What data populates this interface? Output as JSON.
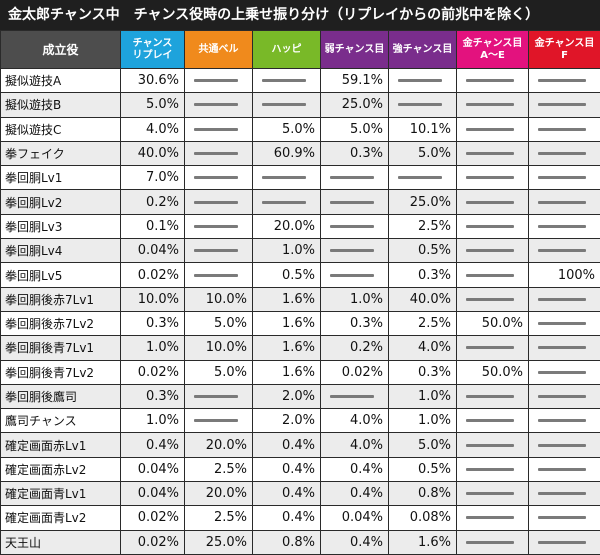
{
  "title": "金太郎チャンス中　チャンス役時の上乗せ振り分け（リプレイからの前兆中を除く）",
  "header": {
    "role": "成立役",
    "columns": [
      {
        "label": "チャンス\nリプレイ",
        "color": "#1ea3dc"
      },
      {
        "label": "共通ベル",
        "color": "#f08a1c"
      },
      {
        "label": "ハッピ",
        "color": "#79b928"
      },
      {
        "label": "弱チャンス目",
        "color": "#7a2d8c"
      },
      {
        "label": "強チャンス目",
        "color": "#7a2d8c"
      },
      {
        "label": "金チャンス目\nA～E",
        "color": "#e3127e"
      },
      {
        "label": "金チャンス目\nF",
        "color": "#e01528"
      }
    ]
  },
  "rows": [
    {
      "name": "擬似遊技A",
      "values": [
        "30.6%",
        "",
        "",
        "59.1%",
        "",
        "",
        ""
      ]
    },
    {
      "name": "擬似遊技B",
      "values": [
        "5.0%",
        "",
        "",
        "25.0%",
        "",
        "",
        ""
      ]
    },
    {
      "name": "擬似遊技C",
      "values": [
        "4.0%",
        "",
        "5.0%",
        "5.0%",
        "10.1%",
        "",
        ""
      ]
    },
    {
      "name": "拳フェイク",
      "values": [
        "40.0%",
        "",
        "60.9%",
        "0.3%",
        "5.0%",
        "",
        ""
      ]
    },
    {
      "name": "拳回胴Lv1",
      "values": [
        "7.0%",
        "",
        "",
        "",
        "",
        "",
        ""
      ]
    },
    {
      "name": "拳回胴Lv2",
      "values": [
        "0.2%",
        "",
        "",
        "",
        "25.0%",
        "",
        ""
      ]
    },
    {
      "name": "拳回胴Lv3",
      "values": [
        "0.1%",
        "",
        "20.0%",
        "",
        "2.5%",
        "",
        ""
      ]
    },
    {
      "name": "拳回胴Lv4",
      "values": [
        "0.04%",
        "",
        "1.0%",
        "",
        "0.5%",
        "",
        ""
      ]
    },
    {
      "name": "拳回胴Lv5",
      "values": [
        "0.02%",
        "",
        "0.5%",
        "",
        "0.3%",
        "",
        "100%"
      ]
    },
    {
      "name": "拳回胴後赤7Lv1",
      "values": [
        "10.0%",
        "10.0%",
        "1.6%",
        "1.0%",
        "40.0%",
        "",
        ""
      ]
    },
    {
      "name": "拳回胴後赤7Lv2",
      "values": [
        "0.3%",
        "5.0%",
        "1.6%",
        "0.3%",
        "2.5%",
        "50.0%",
        ""
      ]
    },
    {
      "name": "拳回胴後青7Lv1",
      "values": [
        "1.0%",
        "10.0%",
        "1.6%",
        "0.2%",
        "4.0%",
        "",
        ""
      ]
    },
    {
      "name": "拳回胴後青7Lv2",
      "values": [
        "0.02%",
        "5.0%",
        "1.6%",
        "0.02%",
        "0.3%",
        "50.0%",
        ""
      ]
    },
    {
      "name": "拳回胴後鷹司",
      "values": [
        "0.3%",
        "",
        "2.0%",
        "",
        "1.0%",
        "",
        ""
      ]
    },
    {
      "name": "鷹司チャンス",
      "values": [
        "1.0%",
        "",
        "2.0%",
        "4.0%",
        "1.0%",
        "",
        ""
      ]
    },
    {
      "name": "確定画面赤Lv1",
      "values": [
        "0.4%",
        "20.0%",
        "0.4%",
        "4.0%",
        "5.0%",
        "",
        ""
      ]
    },
    {
      "name": "確定画面赤Lv2",
      "values": [
        "0.04%",
        "2.5%",
        "0.4%",
        "0.4%",
        "0.5%",
        "",
        ""
      ]
    },
    {
      "name": "確定画面青Lv1",
      "values": [
        "0.04%",
        "20.0%",
        "0.4%",
        "0.4%",
        "0.8%",
        "",
        ""
      ]
    },
    {
      "name": "確定画面青Lv2",
      "values": [
        "0.02%",
        "2.5%",
        "0.4%",
        "0.04%",
        "0.08%",
        "",
        ""
      ]
    },
    {
      "name": "天王山",
      "values": [
        "0.02%",
        "25.0%",
        "0.8%",
        "0.4%",
        "1.6%",
        "",
        ""
      ]
    }
  ]
}
